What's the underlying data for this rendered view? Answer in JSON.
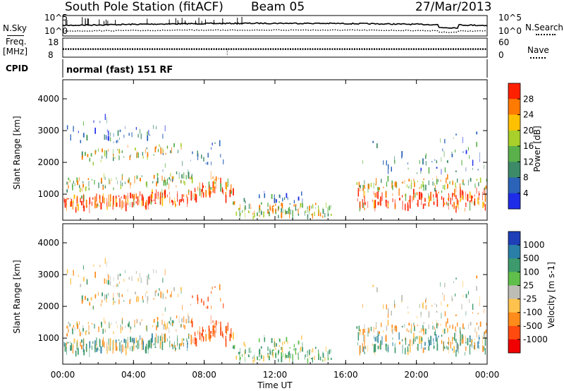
{
  "header": {
    "station": "South Pole Station (fitACF)",
    "beam": "Beam 05",
    "date": "27/Mar/2013"
  },
  "left_labels": {
    "nsky": "N.Sky",
    "freq_line1": "Freq.",
    "freq_line2": "[MHz]",
    "cpid": "CPID"
  },
  "right_labels": {
    "nsearch": "N.Search",
    "nave": "Nave"
  },
  "cpid_text": "normal (fast) 151 RF",
  "chart_data": [
    {
      "type": "line",
      "panel": "noise",
      "series": [
        {
          "name": "N.Sky"
        },
        {
          "name": "N.Search"
        }
      ],
      "left_ticks": [
        "10^5",
        "10^0"
      ],
      "right_ticks": [
        "10^5",
        "10^0"
      ],
      "xlim": [
        "00:00",
        "24:00"
      ]
    },
    {
      "type": "line",
      "panel": "frequency",
      "series": [
        {
          "name": "Freq."
        },
        {
          "name": "Nave"
        }
      ],
      "left_ticks": [
        "18",
        "8"
      ],
      "right_ticks": [
        "60",
        "0"
      ],
      "freq_level_mhz": 12,
      "xlim": [
        "00:00",
        "24:00"
      ]
    },
    {
      "type": "heatmap",
      "panel": "power",
      "ylabel": "Slant Range [km]",
      "yticks": [
        1000,
        2000,
        3000,
        4000
      ],
      "ylim": [
        180,
        4600
      ],
      "xlim": [
        0,
        24
      ],
      "colorbar": {
        "label": "Power [dB]",
        "range": [
          0,
          32
        ],
        "ticks": [
          4,
          8,
          12,
          16,
          20,
          24,
          28
        ],
        "colors": [
          "#1f2de8",
          "#2a63b8",
          "#3d8a68",
          "#5ab04a",
          "#a8cf2a",
          "#ffc000",
          "#ff7a00",
          "#ff2000"
        ]
      }
    },
    {
      "type": "heatmap",
      "panel": "velocity",
      "ylabel": "Slant Range [km]",
      "yticks": [
        1000,
        2000,
        3000,
        4000
      ],
      "ylim": [
        180,
        4600
      ],
      "xlim": [
        0,
        24
      ],
      "xlabel": "Time UT",
      "xticks": [
        "00:00",
        "04:00",
        "08:00",
        "12:00",
        "16:00",
        "20:00",
        "00:00"
      ],
      "colorbar": {
        "label": "Velocity [m s-1]",
        "ticks": [
          "1000",
          "500",
          "100",
          "25",
          "-25",
          "-100",
          "-500",
          "-1000"
        ],
        "colors": [
          "#1f3fb8",
          "#2a7fa8",
          "#3d9a6c",
          "#5fbf4a",
          "#bdbdb5",
          "#ffc24d",
          "#ff8c1a",
          "#ff4a10",
          "#f00000"
        ]
      }
    }
  ]
}
